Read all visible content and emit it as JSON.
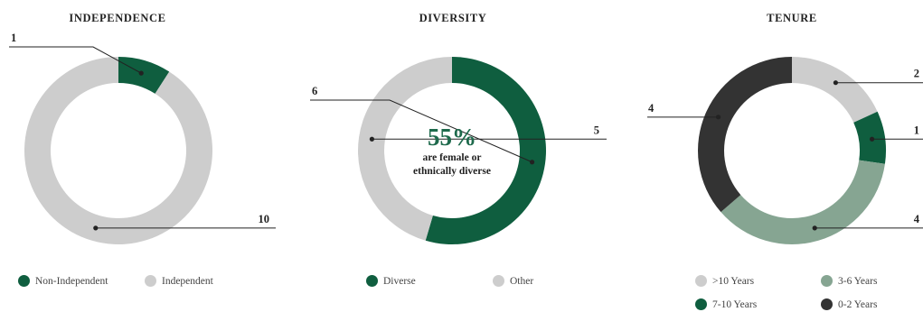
{
  "colors": {
    "dark_green": "#0f5e3f",
    "sage": "#86a592",
    "light_gray": "#cdcdcd",
    "charcoal": "#333333"
  },
  "chart_data": [
    {
      "type": "pie",
      "title": "INDEPENDENCE",
      "slices": [
        {
          "label": "Non-Independent",
          "value": 1,
          "color": "#0f5e3f"
        },
        {
          "label": "Independent",
          "value": 10,
          "color": "#cdcdcd"
        }
      ]
    },
    {
      "type": "pie",
      "title": "DIVERSITY",
      "center_value": "55%",
      "center_text_line1": "are female or",
      "center_text_line2": "ethnically diverse",
      "slices": [
        {
          "label": "Diverse",
          "value": 6,
          "color": "#0f5e3f"
        },
        {
          "label": "Other",
          "value": 5,
          "color": "#cdcdcd"
        }
      ]
    },
    {
      "type": "pie",
      "title": "TENURE",
      "slices": [
        {
          "label": ">10 Years",
          "value": 2,
          "color": "#cdcdcd"
        },
        {
          "label": "7-10 Years",
          "value": 1,
          "color": "#0f5e3f"
        },
        {
          "label": "3-6 Years",
          "value": 4,
          "color": "#86a592"
        },
        {
          "label": "0-2 Years",
          "value": 4,
          "color": "#333333"
        }
      ]
    }
  ]
}
